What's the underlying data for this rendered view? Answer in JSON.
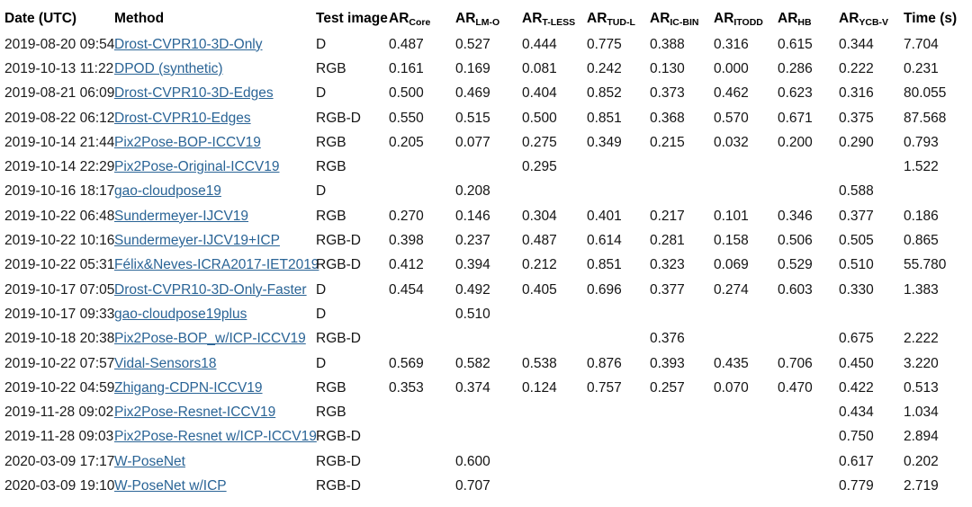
{
  "colors": {
    "link_blue": "#2a6496",
    "text": "#141414",
    "background": "#ffffff"
  },
  "table": {
    "columns": [
      {
        "key": "date",
        "label": "Date (UTC)",
        "sub": ""
      },
      {
        "key": "method",
        "label": "Method",
        "sub": ""
      },
      {
        "key": "test-image",
        "label": "Test image",
        "sub": ""
      },
      {
        "key": "ar-core",
        "label": "AR",
        "sub": "Core"
      },
      {
        "key": "ar-lm-o",
        "label": "AR",
        "sub": "LM-O"
      },
      {
        "key": "ar-t-less",
        "label": "AR",
        "sub": "T-LESS"
      },
      {
        "key": "ar-tud-l",
        "label": "AR",
        "sub": "TUD-L"
      },
      {
        "key": "ar-ic-bin",
        "label": "AR",
        "sub": "IC-BIN"
      },
      {
        "key": "ar-itodd",
        "label": "AR",
        "sub": "ITODD"
      },
      {
        "key": "ar-hb",
        "label": "AR",
        "sub": "HB"
      },
      {
        "key": "ar-ycb-v",
        "label": "AR",
        "sub": "YCB-V"
      },
      {
        "key": "time",
        "label": "Time (s)",
        "sub": ""
      }
    ],
    "rows": [
      {
        "date": "2019-08-20 09:54",
        "method": "Drost-CVPR10-3D-Only",
        "test_image": "D",
        "scores": [
          "0.487",
          "0.527",
          "0.444",
          "0.775",
          "0.388",
          "0.316",
          "0.615",
          "0.344"
        ],
        "time": "7.704"
      },
      {
        "date": "2019-10-13 11:22",
        "method": "DPOD (synthetic)",
        "test_image": "RGB",
        "scores": [
          "0.161",
          "0.169",
          "0.081",
          "0.242",
          "0.130",
          "0.000",
          "0.286",
          "0.222"
        ],
        "time": "0.231"
      },
      {
        "date": "2019-08-21 06:09",
        "method": "Drost-CVPR10-3D-Edges",
        "test_image": "D",
        "scores": [
          "0.500",
          "0.469",
          "0.404",
          "0.852",
          "0.373",
          "0.462",
          "0.623",
          "0.316"
        ],
        "time": "80.055"
      },
      {
        "date": "2019-08-22 06:12",
        "method": "Drost-CVPR10-Edges",
        "test_image": "RGB-D",
        "scores": [
          "0.550",
          "0.515",
          "0.500",
          "0.851",
          "0.368",
          "0.570",
          "0.671",
          "0.375"
        ],
        "time": "87.568"
      },
      {
        "date": "2019-10-14 21:44",
        "method": "Pix2Pose-BOP-ICCV19",
        "test_image": "RGB",
        "scores": [
          "0.205",
          "0.077",
          "0.275",
          "0.349",
          "0.215",
          "0.032",
          "0.200",
          "0.290"
        ],
        "time": "0.793"
      },
      {
        "date": "2019-10-14 22:29",
        "method": "Pix2Pose-Original-ICCV19",
        "test_image": "RGB",
        "scores": [
          "",
          "",
          "0.295",
          "",
          "",
          "",
          "",
          ""
        ],
        "time": "1.522"
      },
      {
        "date": "2019-10-16 18:17",
        "method": "gao-cloudpose19",
        "test_image": "D",
        "scores": [
          "",
          "0.208",
          "",
          "",
          "",
          "",
          "",
          "0.588"
        ],
        "time": ""
      },
      {
        "date": "2019-10-22 06:48",
        "method": "Sundermeyer-IJCV19",
        "test_image": "RGB",
        "scores": [
          "0.270",
          "0.146",
          "0.304",
          "0.401",
          "0.217",
          "0.101",
          "0.346",
          "0.377"
        ],
        "time": "0.186"
      },
      {
        "date": "2019-10-22 10:16",
        "method": "Sundermeyer-IJCV19+ICP",
        "test_image": "RGB-D",
        "scores": [
          "0.398",
          "0.237",
          "0.487",
          "0.614",
          "0.281",
          "0.158",
          "0.506",
          "0.505"
        ],
        "time": "0.865"
      },
      {
        "date": "2019-10-22 05:31",
        "method": "Félix&Neves-ICRA2017-IET2019",
        "test_image": "RGB-D",
        "scores": [
          "0.412",
          "0.394",
          "0.212",
          "0.851",
          "0.323",
          "0.069",
          "0.529",
          "0.510"
        ],
        "time": "55.780"
      },
      {
        "date": "2019-10-17 07:05",
        "method": "Drost-CVPR10-3D-Only-Faster",
        "test_image": "D",
        "scores": [
          "0.454",
          "0.492",
          "0.405",
          "0.696",
          "0.377",
          "0.274",
          "0.603",
          "0.330"
        ],
        "time": "1.383"
      },
      {
        "date": "2019-10-17 09:33",
        "method": "gao-cloudpose19plus",
        "test_image": "D",
        "scores": [
          "",
          "0.510",
          "",
          "",
          "",
          "",
          "",
          ""
        ],
        "time": ""
      },
      {
        "date": "2019-10-18 20:38",
        "method": "Pix2Pose-BOP_w/ICP-ICCV19",
        "test_image": "RGB-D",
        "scores": [
          "",
          "",
          "",
          "",
          "0.376",
          "",
          "",
          "0.675"
        ],
        "time": "2.222"
      },
      {
        "date": "2019-10-22 07:57",
        "method": "Vidal-Sensors18",
        "test_image": "D",
        "scores": [
          "0.569",
          "0.582",
          "0.538",
          "0.876",
          "0.393",
          "0.435",
          "0.706",
          "0.450"
        ],
        "time": "3.220"
      },
      {
        "date": "2019-10-22 04:59",
        "method": "Zhigang-CDPN-ICCV19",
        "test_image": "RGB",
        "scores": [
          "0.353",
          "0.374",
          "0.124",
          "0.757",
          "0.257",
          "0.070",
          "0.470",
          "0.422"
        ],
        "time": "0.513"
      },
      {
        "date": "2019-11-28 09:02",
        "method": "Pix2Pose-Resnet-ICCV19",
        "test_image": "RGB",
        "scores": [
          "",
          "",
          "",
          "",
          "",
          "",
          "",
          "0.434"
        ],
        "time": "1.034"
      },
      {
        "date": "2019-11-28 09:03",
        "method": "Pix2Pose-Resnet w/ICP-ICCV19",
        "test_image": "RGB-D",
        "scores": [
          "",
          "",
          "",
          "",
          "",
          "",
          "",
          "0.750"
        ],
        "time": "2.894"
      },
      {
        "date": "2020-03-09 17:17",
        "method": "W-PoseNet",
        "test_image": "RGB-D",
        "scores": [
          "",
          "0.600",
          "",
          "",
          "",
          "",
          "",
          ""
        ],
        "time": "0.202",
        "ycb_override": "0.617"
      },
      {
        "date": "2020-03-09 19:10",
        "method": "W-PoseNet w/ICP",
        "test_image": "RGB-D",
        "scores": [
          "",
          "0.707",
          "",
          "",
          "",
          "",
          "",
          ""
        ],
        "time": "2.719",
        "ycb_override": "0.779"
      }
    ]
  }
}
